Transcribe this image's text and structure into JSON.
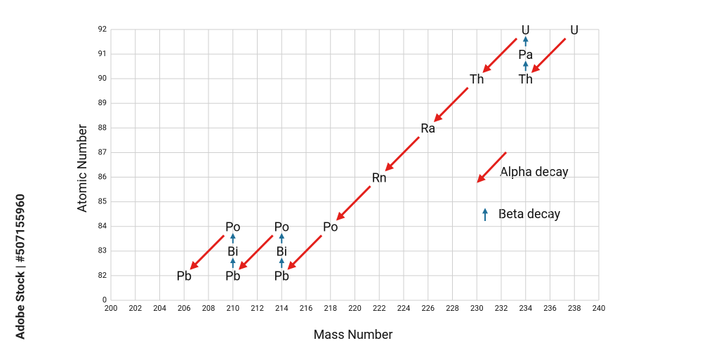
{
  "chart_data": {
    "type": "decay-chain",
    "xlabel": "Mass Number",
    "ylabel": "Atomic Number",
    "xlim": [
      200,
      240
    ],
    "xticks": [
      200,
      202,
      204,
      206,
      208,
      210,
      212,
      214,
      216,
      218,
      220,
      222,
      224,
      226,
      228,
      230,
      232,
      234,
      236,
      238,
      240
    ],
    "ylim": [
      0,
      92
    ],
    "yticks": [
      0,
      82,
      83,
      84,
      85,
      86,
      87,
      88,
      89,
      90,
      91,
      92
    ],
    "grid": true,
    "nuclides": [
      {
        "label": "U",
        "x": 238,
        "y": 92
      },
      {
        "label": "U",
        "x": 234,
        "y": 92
      },
      {
        "label": "Pa",
        "x": 234,
        "y": 91
      },
      {
        "label": "Th",
        "x": 234,
        "y": 90
      },
      {
        "label": "Th",
        "x": 230,
        "y": 90
      },
      {
        "label": "Ra",
        "x": 226,
        "y": 88
      },
      {
        "label": "Rn",
        "x": 222,
        "y": 86
      },
      {
        "label": "Po",
        "x": 218,
        "y": 84
      },
      {
        "label": "Po",
        "x": 214,
        "y": 84
      },
      {
        "label": "Bi",
        "x": 214,
        "y": 83
      },
      {
        "label": "Pb",
        "x": 214,
        "y": 82
      },
      {
        "label": "Po",
        "x": 210,
        "y": 84
      },
      {
        "label": "Bi",
        "x": 210,
        "y": 83
      },
      {
        "label": "Pb",
        "x": 210,
        "y": 82
      },
      {
        "label": "Pb",
        "x": 206,
        "y": 82
      }
    ],
    "alpha": {
      "name": "Alpha decay",
      "color": "#e3201b",
      "decays": [
        {
          "from": [
            238,
            92
          ],
          "to": [
            234,
            90
          ]
        },
        {
          "from": [
            234,
            92
          ],
          "to": [
            230,
            90
          ]
        },
        {
          "from": [
            230,
            90
          ],
          "to": [
            226,
            88
          ]
        },
        {
          "from": [
            226,
            88
          ],
          "to": [
            222,
            86
          ]
        },
        {
          "from": [
            222,
            86
          ],
          "to": [
            218,
            84
          ]
        },
        {
          "from": [
            218,
            84
          ],
          "to": [
            214,
            82
          ]
        },
        {
          "from": [
            214,
            84
          ],
          "to": [
            210,
            82
          ]
        },
        {
          "from": [
            210,
            84
          ],
          "to": [
            206,
            82
          ]
        }
      ]
    },
    "beta": {
      "name": "Beta decay",
      "color": "#1f6f99",
      "decays": [
        {
          "from": [
            234,
            90
          ],
          "to": [
            234,
            91
          ]
        },
        {
          "from": [
            234,
            91
          ],
          "to": [
            234,
            92
          ]
        },
        {
          "from": [
            214,
            82
          ],
          "to": [
            214,
            83
          ]
        },
        {
          "from": [
            214,
            83
          ],
          "to": [
            214,
            84
          ]
        },
        {
          "from": [
            210,
            82
          ],
          "to": [
            210,
            83
          ]
        },
        {
          "from": [
            210,
            83
          ],
          "to": [
            210,
            84
          ]
        }
      ]
    },
    "watermark": "Adobe Stock | #507155960"
  }
}
